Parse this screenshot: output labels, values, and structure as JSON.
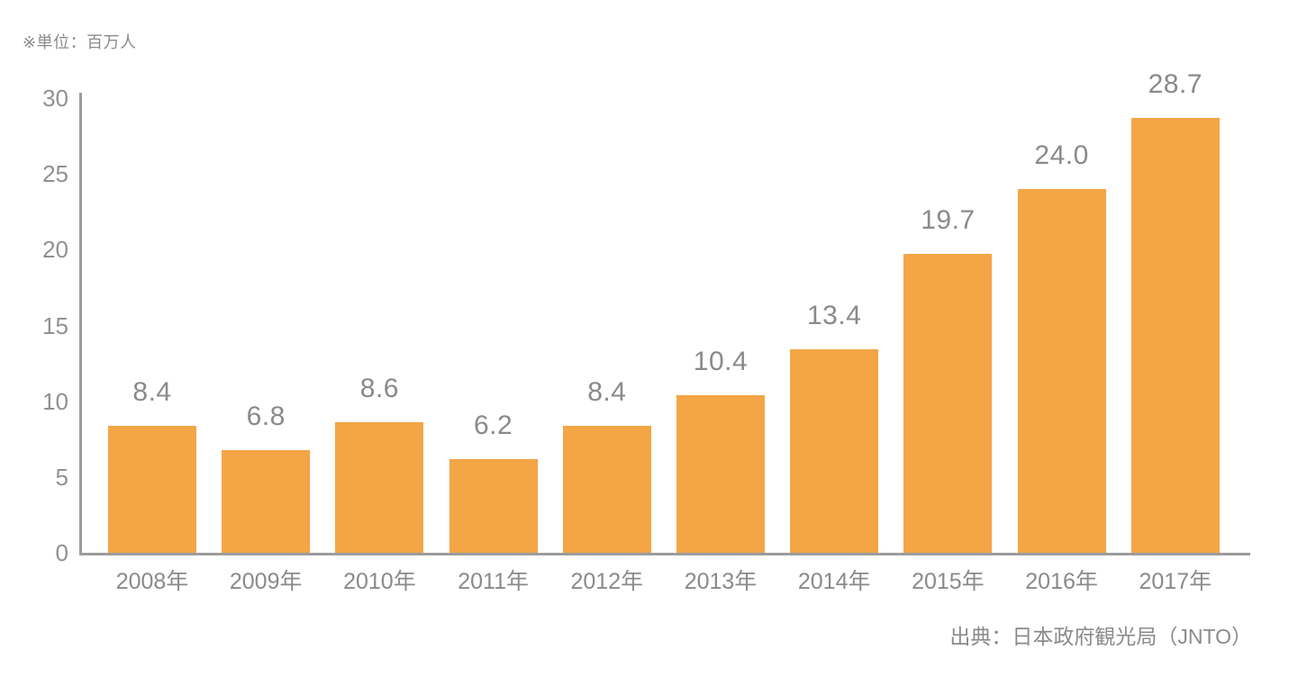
{
  "page": {
    "unit_note": "※単位：百万人",
    "source_credit": "出典：日本政府観光局（JNTO）"
  },
  "chart_data": {
    "type": "bar",
    "title": "",
    "xlabel": "",
    "ylabel": "百万人",
    "categories": [
      "2008年",
      "2009年",
      "2010年",
      "2011年",
      "2012年",
      "2013年",
      "2014年",
      "2015年",
      "2016年",
      "2017年"
    ],
    "values": [
      8.4,
      6.8,
      8.6,
      6.2,
      8.4,
      10.4,
      13.4,
      19.7,
      24.0,
      28.7
    ],
    "data_labels": [
      "8.4",
      "6.8",
      "8.6",
      "6.2",
      "8.4",
      "10.4",
      "13.4",
      "19.7",
      "24.0",
      "28.7"
    ],
    "yticks": [
      0,
      5,
      10,
      15,
      20,
      25,
      30
    ],
    "ylim": [
      0,
      30
    ],
    "grid": false,
    "legend": "none",
    "colors": {
      "bar": "#F4A546",
      "value_label": "#8A8A8A",
      "tick_label": "#919191",
      "axis_line": "#9C9C9C",
      "note_text": "#8B8B8B"
    }
  }
}
